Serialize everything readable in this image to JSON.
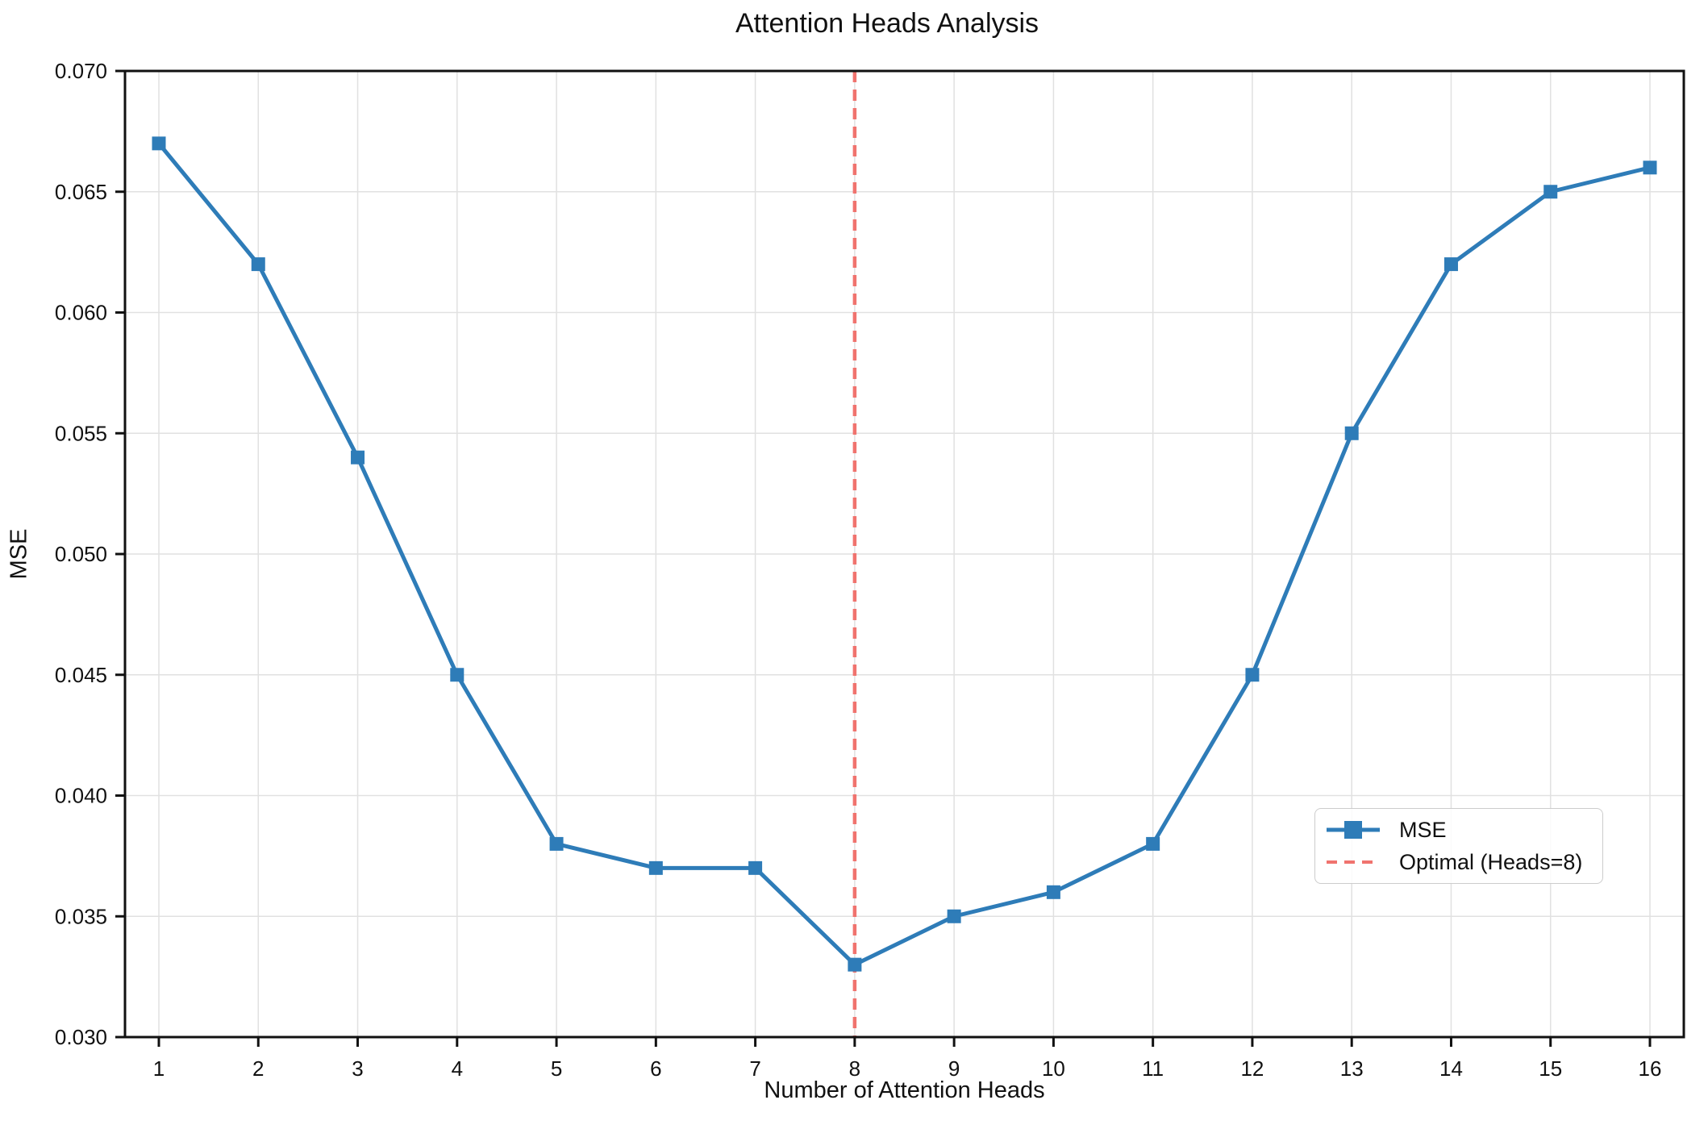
{
  "title": "Attention Heads Analysis",
  "chart_data": {
    "type": "line",
    "title": "Attention Heads Analysis",
    "xlabel": "Number of Attention Heads",
    "ylabel": "MSE",
    "x": [
      1,
      2,
      3,
      4,
      5,
      6,
      7,
      8,
      9,
      10,
      11,
      12,
      13,
      14,
      15,
      16
    ],
    "x_tick_labels": [
      "1",
      "2",
      "3",
      "4",
      "5",
      "6",
      "7",
      "8",
      "9",
      "10",
      "11",
      "12",
      "13",
      "14",
      "15",
      "16"
    ],
    "series": [
      {
        "name": "MSE",
        "values": [
          0.067,
          0.062,
          0.054,
          0.045,
          0.038,
          0.037,
          0.037,
          0.033,
          0.035,
          0.036,
          0.038,
          0.045,
          0.055,
          0.062,
          0.065,
          0.066
        ],
        "color": "#2e7cb8",
        "marker": "square"
      }
    ],
    "annotations": {
      "vline": {
        "x": 8,
        "label": "Optimal (Heads=8)",
        "color": "#f0736e",
        "style": "dashed"
      }
    },
    "ylim": [
      0.03,
      0.07
    ],
    "y_tick_labels": [
      "0.030",
      "0.035",
      "0.040",
      "0.045",
      "0.050",
      "0.055",
      "0.060",
      "0.065",
      "0.070"
    ],
    "grid": true,
    "legend": {
      "position": "center right",
      "items": [
        {
          "label": "MSE",
          "symbol": "line-with-square-marker",
          "color": "#2e7cb8"
        },
        {
          "label": "Optimal (Heads=8)",
          "symbol": "dashed-line",
          "color": "#f0736e"
        }
      ]
    },
    "colors": {
      "grid": "#e1e1e1",
      "spine": "#111111",
      "text": "#111111",
      "background": "#ffffff"
    }
  }
}
